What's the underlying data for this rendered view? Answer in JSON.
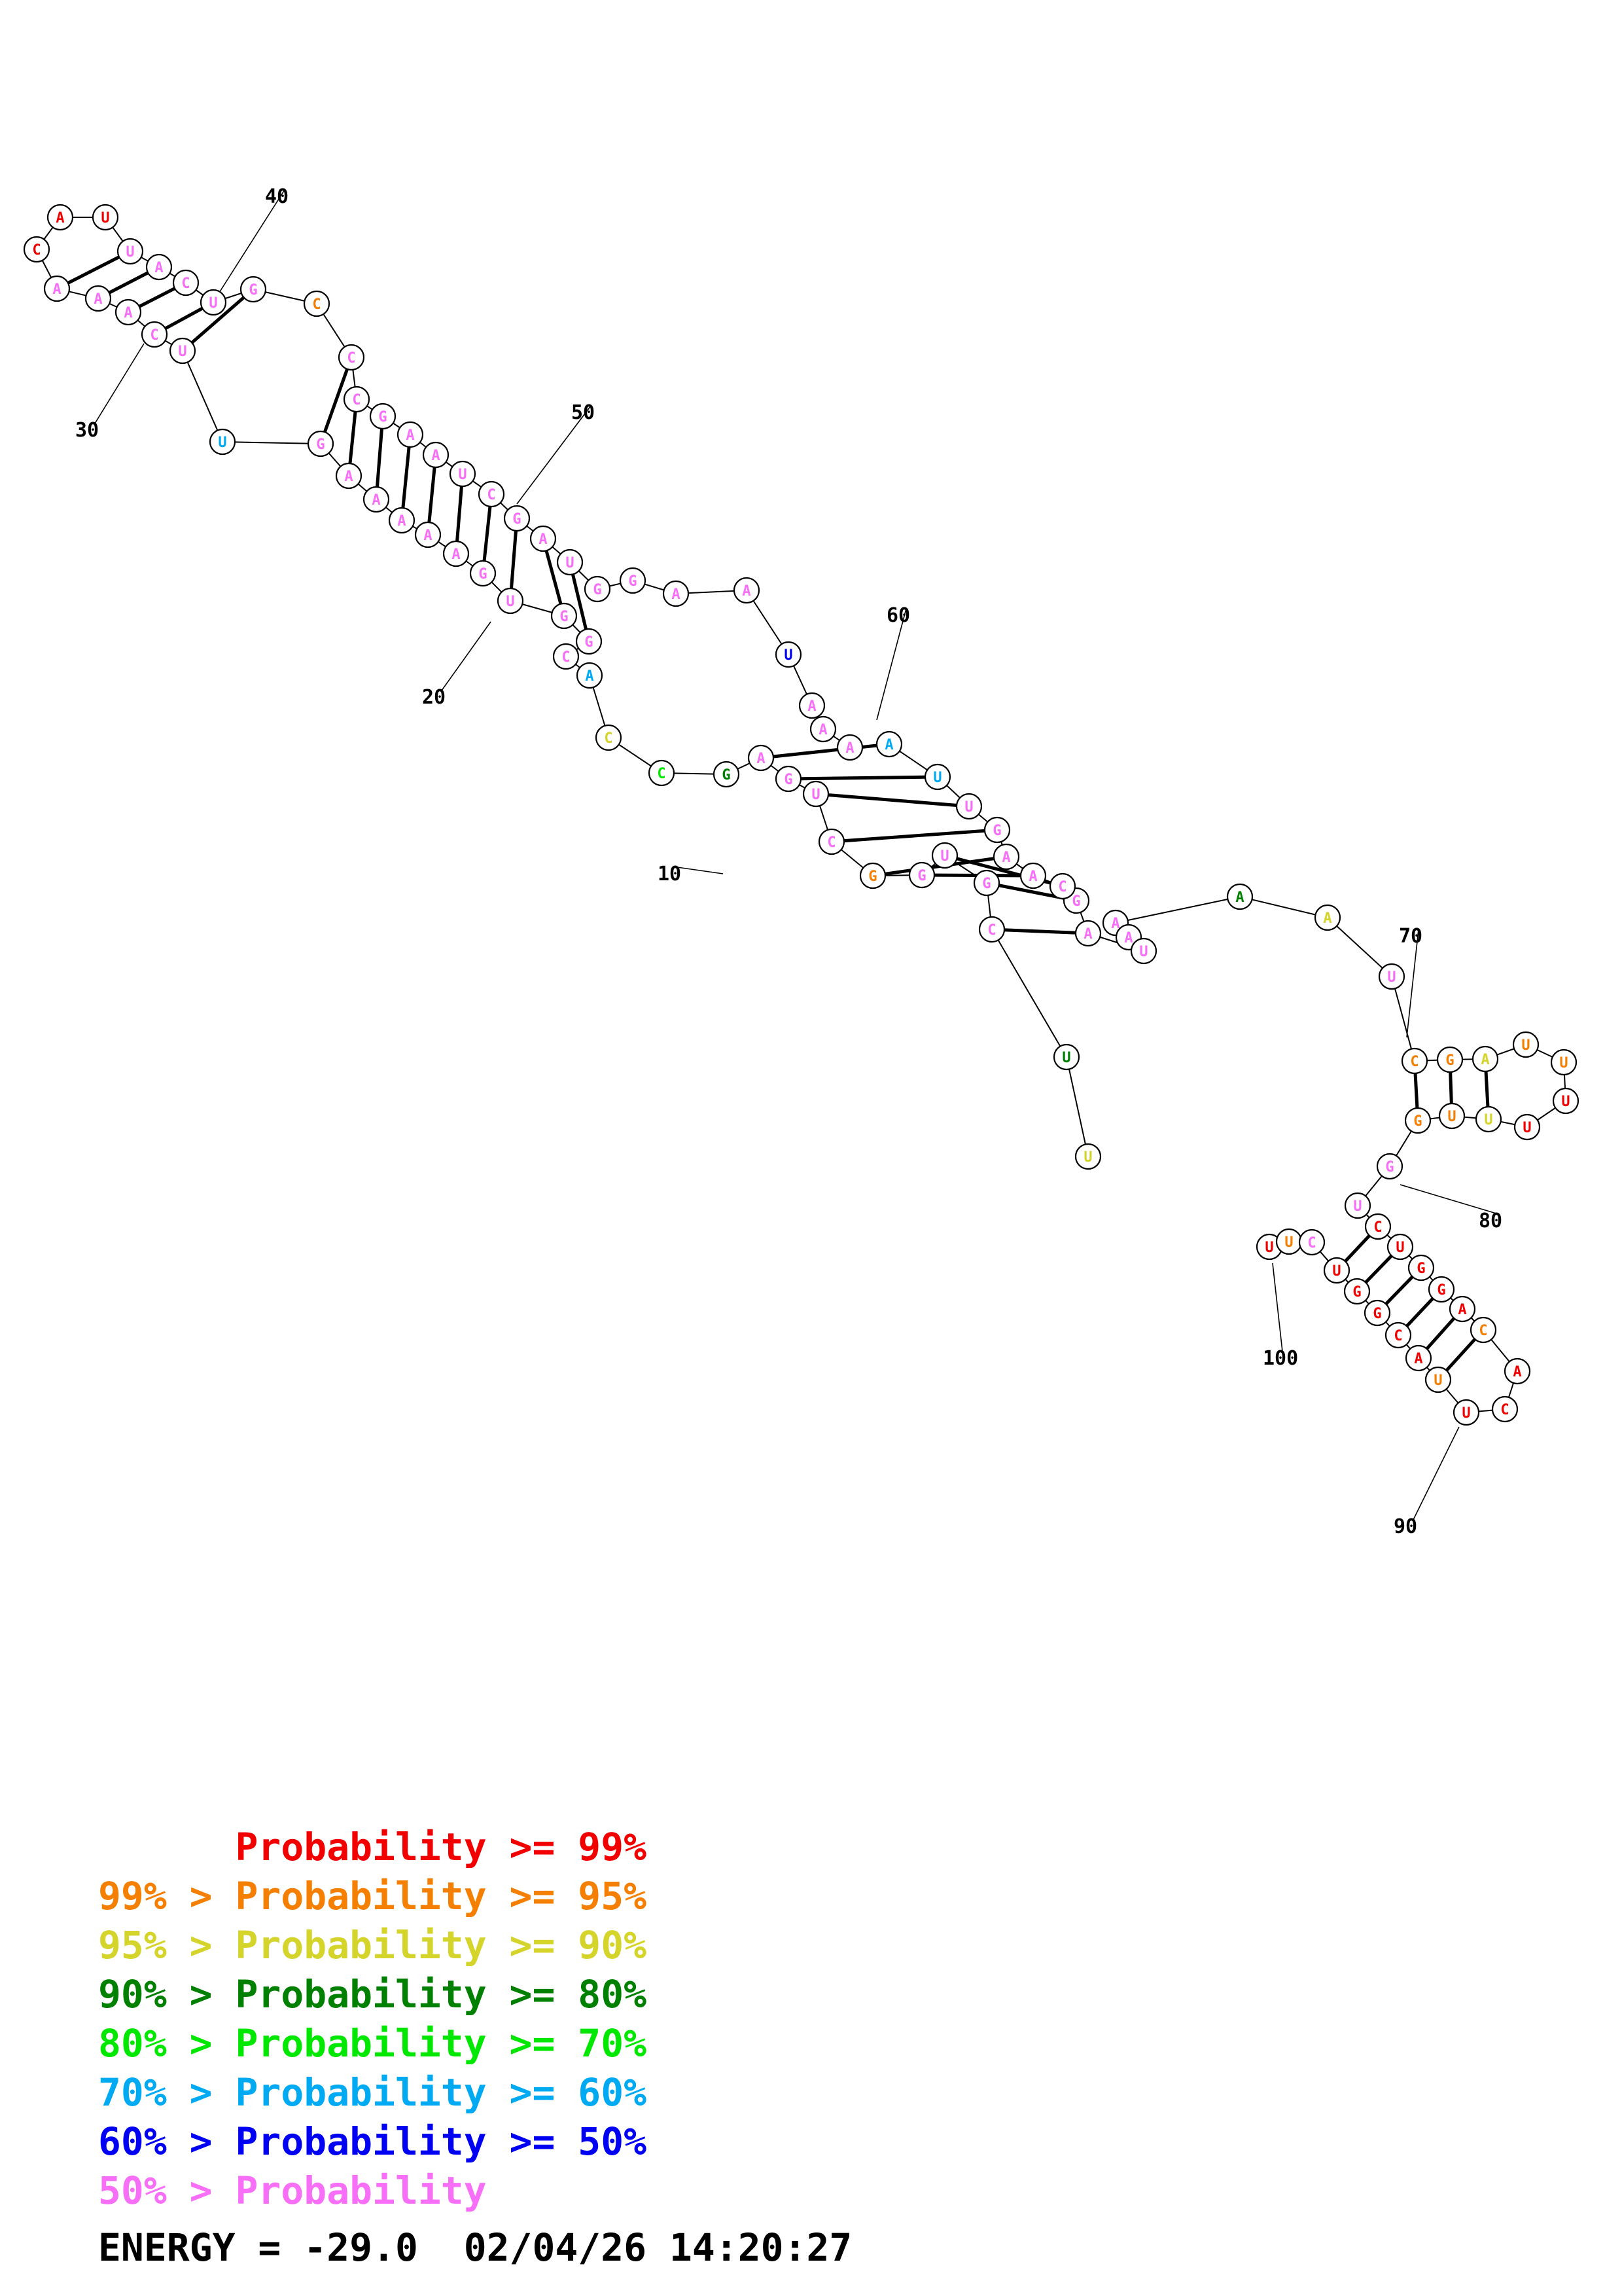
{
  "sequence": "UUCUGGCAUUCACAGGUCUGGUUUUUUAGCUAAAAUAGCAAGUUAAAAUAAGGUAGCUAAGCCCGUCAUUACAAACUUGAAAAAGUGGCACCGAGUCGGUGCUUU",
  "legend": [
    {
      "prefix": "",
      "text": "Probability >= 99%",
      "color": "#f20000"
    },
    {
      "prefix": "99% > ",
      "text": "Probability >= 95%",
      "color": "#f57f00"
    },
    {
      "prefix": "95% > ",
      "text": "Probability >= 90%",
      "color": "#d4d42b"
    },
    {
      "prefix": "90% > ",
      "text": "Probability >= 80%",
      "color": "#008000"
    },
    {
      "prefix": "80% > ",
      "text": "Probability >= 70%",
      "color": "#00e800"
    },
    {
      "prefix": "70% > ",
      "text": "Probability >= 60%",
      "color": "#00aaf2"
    },
    {
      "prefix": "60% > ",
      "text": "Probability >= 50%",
      "color": "#0000f2"
    },
    {
      "prefix": "50% > ",
      "text": "Probability",
      "color": "#f76ef7"
    }
  ],
  "position_labels": [
    "10",
    "20",
    "30",
    "40",
    "50",
    "60",
    "70",
    "80",
    "90",
    "100"
  ],
  "energy_text": "ENERGY = -29.0  02/04/26 14:20:27"
}
